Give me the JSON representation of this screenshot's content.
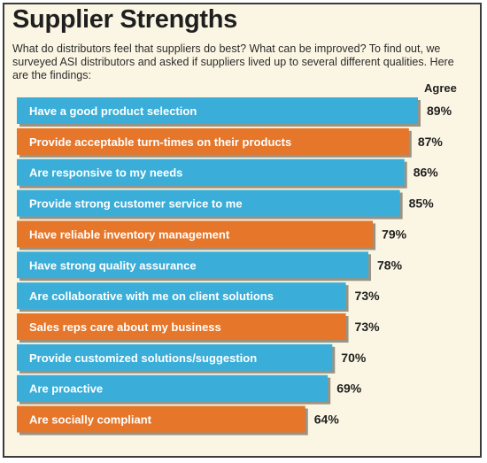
{
  "header": {
    "title": "Supplier Strengths",
    "subtitle": "What do distributors feel that suppliers do best? What can be improved? To find out, we surveyed ASI distributors and asked if suppliers lived up to several different qualities. Here are the findings:"
  },
  "colors": {
    "blue": "#3aaed8",
    "orange": "#e5762a",
    "background": "#fbf6e4"
  },
  "chart_data": {
    "type": "bar",
    "orientation": "horizontal",
    "title": "Supplier Strengths",
    "value_header": "Agree",
    "unit": "%",
    "categories": [
      "Have a good product selection",
      "Provide acceptable turn-times on their products",
      "Are responsive to my needs",
      "Provide strong customer service to me",
      "Have reliable inventory management",
      "Have strong quality assurance",
      "Are collaborative with me on client solutions",
      "Sales reps care about my business",
      "Provide customized solutions/suggestion",
      "Are proactive",
      "Are socially compliant"
    ],
    "values": [
      89,
      87,
      86,
      85,
      79,
      78,
      73,
      73,
      70,
      69,
      64
    ],
    "value_labels": [
      "89%",
      "87%",
      "86%",
      "85%",
      "79%",
      "78%",
      "73%",
      "73%",
      "70%",
      "69%",
      "64%"
    ],
    "bar_colors": [
      "blue",
      "orange",
      "blue",
      "blue",
      "orange",
      "blue",
      "blue",
      "orange",
      "blue",
      "blue",
      "orange"
    ],
    "grid": false,
    "legend": false
  }
}
